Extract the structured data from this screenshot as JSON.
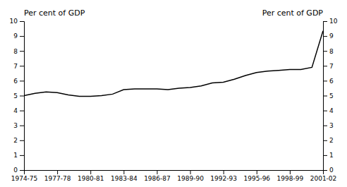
{
  "chart_data": {
    "type": "line",
    "x": [
      0,
      1,
      2,
      3,
      4,
      5,
      6,
      7,
      8,
      9,
      10,
      11,
      12,
      13,
      14,
      15,
      16,
      17,
      18,
      19,
      20,
      21,
      22,
      23,
      24,
      25,
      26,
      27
    ],
    "values": [
      5.0,
      5.15,
      5.25,
      5.2,
      5.05,
      4.95,
      4.95,
      5.0,
      5.1,
      5.4,
      5.45,
      5.45,
      5.45,
      5.4,
      5.5,
      5.55,
      5.65,
      5.85,
      5.9,
      6.1,
      6.35,
      6.55,
      6.65,
      6.7,
      6.75,
      6.75,
      6.9,
      9.35
    ],
    "color": "#000000",
    "xlim": [
      0,
      27
    ],
    "xticks": [
      {
        "value": 0,
        "label": "1974-75"
      },
      {
        "value": 3,
        "label": "1977-78"
      },
      {
        "value": 6,
        "label": "1980-81"
      },
      {
        "value": 9,
        "label": "1983-84"
      },
      {
        "value": 12,
        "label": "1986-87"
      },
      {
        "value": 15,
        "label": "1989-90"
      },
      {
        "value": 18,
        "label": "1992-93"
      },
      {
        "value": 21,
        "label": "1995-96"
      },
      {
        "value": 24,
        "label": "1998-99"
      },
      {
        "value": 27,
        "label": "2001-02"
      }
    ],
    "ylim": [
      0,
      10
    ],
    "yticks": [
      0,
      1,
      2,
      3,
      4,
      5,
      6,
      7,
      8,
      9,
      10
    ],
    "y2lim": [
      0,
      10
    ],
    "y2ticks": [
      0,
      1,
      2,
      3,
      4,
      5,
      6,
      7,
      8,
      9,
      10
    ],
    "y_label": "Per cent of GDP",
    "y2_label": "Per cent of GDP",
    "grid": false
  }
}
